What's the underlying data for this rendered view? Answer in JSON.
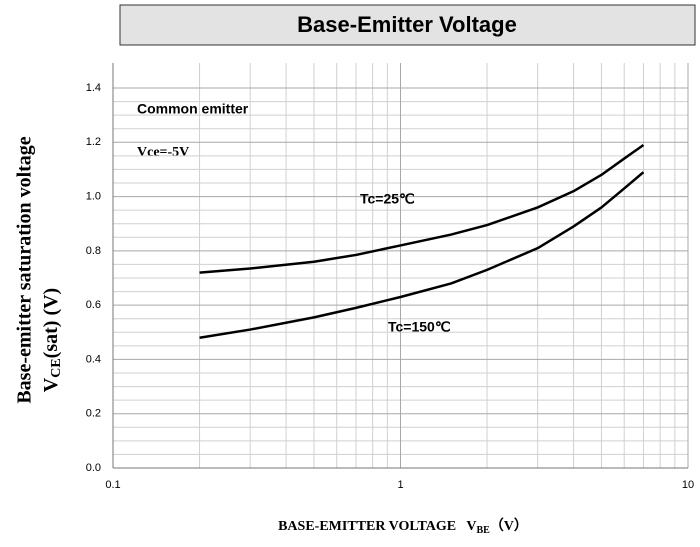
{
  "chart_data": {
    "type": "line",
    "title": "Base-Emitter Voltage",
    "ylabel": {
      "line1": "Base-emitter saturation voltage",
      "main": "V",
      "sub": "CE",
      "rest": "(sat) (V)"
    },
    "xlabel": {
      "main": "BASE-EMITTER VOLTAGE   V",
      "sub": "BE",
      "rest": "（V）"
    },
    "annotations": [
      "Common emitter",
      "Vce=-5V"
    ],
    "x": [
      0.2,
      0.3,
      0.5,
      0.7,
      1,
      1.5,
      2,
      3,
      4,
      5,
      6,
      7
    ],
    "series": [
      {
        "name": "Tc=25℃",
        "color": "#000000",
        "values": [
          0.72,
          0.735,
          0.76,
          0.785,
          0.82,
          0.86,
          0.895,
          0.96,
          1.02,
          1.08,
          1.14,
          1.19
        ]
      },
      {
        "name": "Tc=150℃",
        "color": "#000000",
        "values": [
          0.48,
          0.51,
          0.555,
          0.59,
          0.63,
          0.68,
          0.73,
          0.81,
          0.89,
          0.96,
          1.03,
          1.09
        ]
      }
    ],
    "xscale": "log",
    "xlim": [
      0.1,
      10
    ],
    "xticks": [
      0.1,
      1,
      10
    ],
    "ylim": [
      0,
      1.4
    ],
    "yticks": [
      {
        "value": 0,
        "label": "0.0"
      },
      0.2,
      0.4,
      0.6,
      0.8,
      {
        "value": 1,
        "label": "1.0"
      },
      1.2,
      1.4
    ],
    "grid": true
  }
}
